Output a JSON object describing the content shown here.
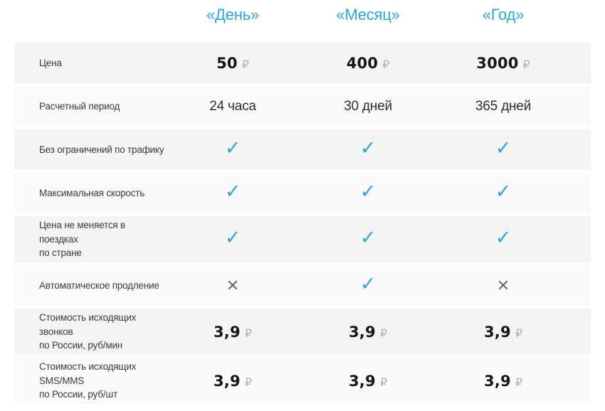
{
  "colors": {
    "accent_blue": "#2AA7DF",
    "cross_gray": "#6d6d6d",
    "currency_gray": "#b2b2b4",
    "row_odd_bg": "#f4f4f5",
    "row_even_bg": "#fafafa"
  },
  "icons": {
    "check": "✓",
    "cross": "✕"
  },
  "table": {
    "column_headers": [
      "«День»",
      "«Месяц»",
      "«Год»"
    ],
    "rows": [
      {
        "label": "Цена",
        "type": "price",
        "values": [
          {
            "amount": "50",
            "currency": "₽"
          },
          {
            "amount": "400",
            "currency": "₽"
          },
          {
            "amount": "3000",
            "currency": "₽"
          }
        ]
      },
      {
        "label": "Расчетный период",
        "type": "text",
        "values": [
          "24 часа",
          "30 дней",
          "365 дней"
        ]
      },
      {
        "label": "Без ограничений по трафику",
        "type": "marks",
        "values": [
          "check",
          "check",
          "check"
        ]
      },
      {
        "label": "Максимальная скорость",
        "type": "marks",
        "values": [
          "check",
          "check",
          "check"
        ]
      },
      {
        "label": "Цена не меняется в поездках\nпо стране",
        "type": "marks",
        "values": [
          "check",
          "check",
          "check"
        ]
      },
      {
        "label": "Автоматическое продление",
        "type": "marks",
        "values": [
          "cross",
          "check",
          "cross"
        ]
      },
      {
        "label": "Стоимость исходящих звонков\nпо России, руб/мин",
        "type": "price",
        "values": [
          {
            "amount": "3,9",
            "currency": "₽"
          },
          {
            "amount": "3,9",
            "currency": "₽"
          },
          {
            "amount": "3,9",
            "currency": "₽"
          }
        ]
      },
      {
        "label": "Стоимость исходящих SMS/MMS\nпо России, руб/шт",
        "type": "price",
        "values": [
          {
            "amount": "3,9",
            "currency": "₽"
          },
          {
            "amount": "3,9",
            "currency": "₽"
          },
          {
            "amount": "3,9",
            "currency": "₽"
          }
        ]
      }
    ]
  }
}
